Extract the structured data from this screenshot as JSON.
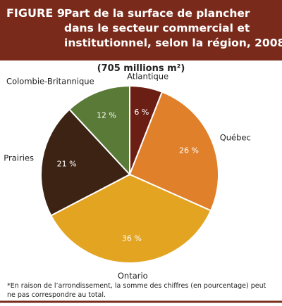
{
  "chart_data": {
    "type": "pie",
    "figure_label": "FIGURE 9",
    "title": [
      "Part de la surface de plancher",
      "dans le secteur commercial et",
      "institutionnel, selon la région, 2008"
    ],
    "subtitle": "(705 millions m²)",
    "categories": [
      "Atlantique",
      "Québec",
      "Ontario",
      "Prairies",
      "Colombie-Britannique"
    ],
    "values": [
      6,
      26,
      36,
      21,
      12
    ],
    "value_labels": [
      "6 %",
      "26 %",
      "36 %",
      "21 %",
      "12 %"
    ],
    "colors": [
      "#6b1f14",
      "#e0802a",
      "#e3a422",
      "#3c2314",
      "#5a7a37"
    ],
    "footnote": "*En raison de l’arrondissement, la somme des chiffres (en pourcentage) peut ne pas correspondre au total."
  }
}
